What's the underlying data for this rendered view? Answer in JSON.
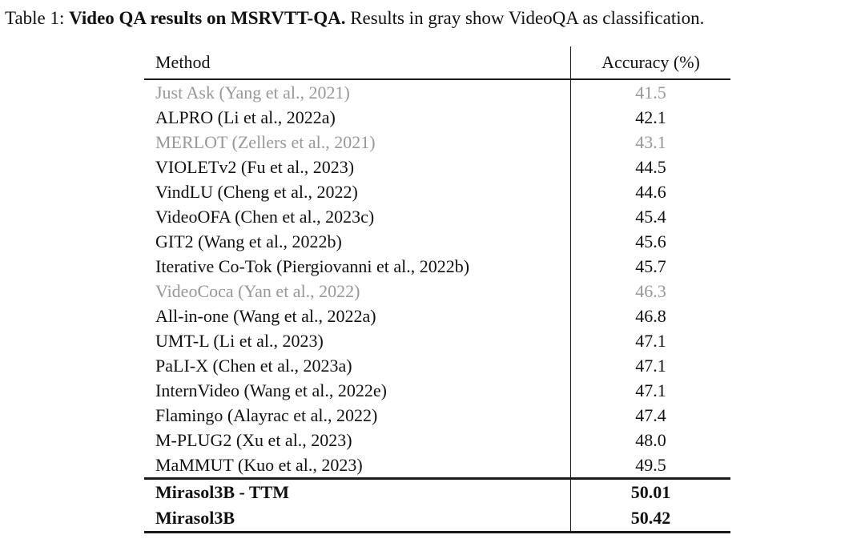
{
  "colors": {
    "text": "#111111",
    "gray": "#989898",
    "rule": "#1a1a1a"
  },
  "caption": {
    "label": "Table 1:",
    "title_bold": "Video QA results on MSRVTT-QA.",
    "suffix": "Results in gray show VideoQA as classification."
  },
  "table": {
    "col_headers": [
      "Method",
      "Accuracy (%)"
    ],
    "rows": [
      {
        "method": "Just Ask (Yang et al., 2021)",
        "accuracy": "41.5",
        "gray": true
      },
      {
        "method": "ALPRO (Li et al., 2022a)",
        "accuracy": "42.1",
        "gray": false
      },
      {
        "method": "MERLOT (Zellers et al., 2021)",
        "accuracy": "43.1",
        "gray": true
      },
      {
        "method": "VIOLETv2 (Fu et al., 2023)",
        "accuracy": "44.5",
        "gray": false
      },
      {
        "method": "VindLU (Cheng et al., 2022)",
        "accuracy": "44.6",
        "gray": false
      },
      {
        "method": "VideoOFA (Chen et al., 2023c)",
        "accuracy": "45.4",
        "gray": false
      },
      {
        "method": "GIT2 (Wang et al., 2022b)",
        "accuracy": "45.6",
        "gray": false
      },
      {
        "method": "Iterative Co-Tok (Piergiovanni et al., 2022b)",
        "accuracy": "45.7",
        "gray": false
      },
      {
        "method": "VideoCoca (Yan et al., 2022)",
        "accuracy": "46.3",
        "gray": true
      },
      {
        "method": "All-in-one (Wang et al., 2022a)",
        "accuracy": "46.8",
        "gray": false
      },
      {
        "method": "UMT-L (Li et al., 2023)",
        "accuracy": "47.1",
        "gray": false
      },
      {
        "method": "PaLI-X (Chen et al., 2023a)",
        "accuracy": "47.1",
        "gray": false
      },
      {
        "method": "InternVideo (Wang et al., 2022e)",
        "accuracy": "47.1",
        "gray": false
      },
      {
        "method": "Flamingo (Alayrac et al., 2022)",
        "accuracy": "47.4",
        "gray": false
      },
      {
        "method": "M-PLUG2 (Xu et al., 2023)",
        "accuracy": "48.0",
        "gray": false
      },
      {
        "method": "MaMMUT (Kuo et al., 2023)",
        "accuracy": "49.5",
        "gray": false
      }
    ],
    "final_rows": [
      {
        "method": "Mirasol3B - TTM",
        "accuracy": "50.01"
      },
      {
        "method": "Mirasol3B",
        "accuracy": "50.42"
      }
    ]
  }
}
